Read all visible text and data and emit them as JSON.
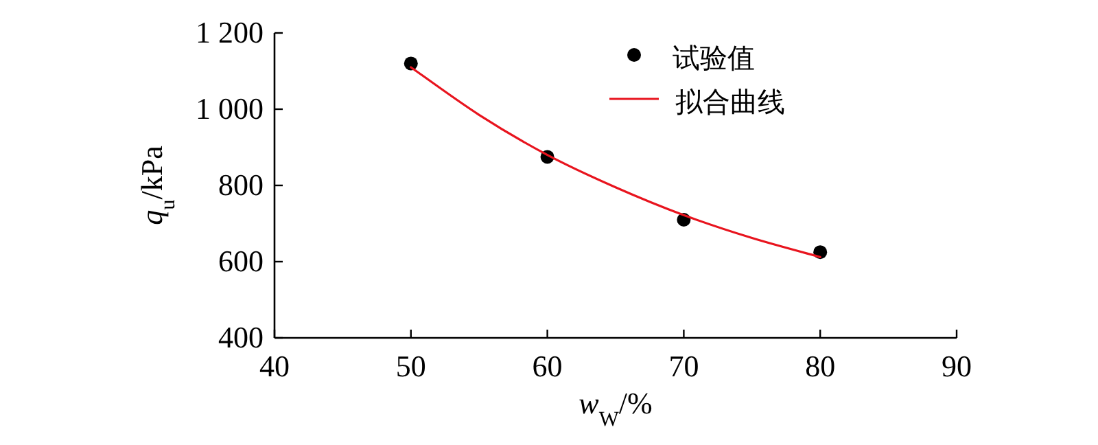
{
  "chart_data": {
    "type": "scatter",
    "xlabel": "w$_{W}$/%",
    "ylabel": "q$_{u}$/kPa",
    "xlim": [
      40,
      90
    ],
    "xticks": [
      40,
      50,
      60,
      70,
      80,
      90
    ],
    "ylim": [
      400,
      1200
    ],
    "yticks": [
      400,
      600,
      800,
      {
        "value": 1000,
        "label": "1 000"
      },
      {
        "value": 1200,
        "label": "1 200"
      }
    ],
    "grid": false,
    "legend": "top right",
    "series": [
      {
        "name": "试验值",
        "color": "#000000",
        "marker": "circle",
        "x": [
          50,
          60,
          70,
          80
        ],
        "values": [
          1120,
          875,
          710,
          625
        ]
      },
      {
        "name": "拟合曲线",
        "type": "line",
        "color": "#e8141e",
        "marker": "none",
        "line_style": "solid",
        "x": [
          50,
          55,
          60,
          65,
          70,
          75,
          80
        ],
        "values": [
          1110,
          985,
          880,
          795,
          722,
          662,
          612
        ]
      }
    ]
  }
}
